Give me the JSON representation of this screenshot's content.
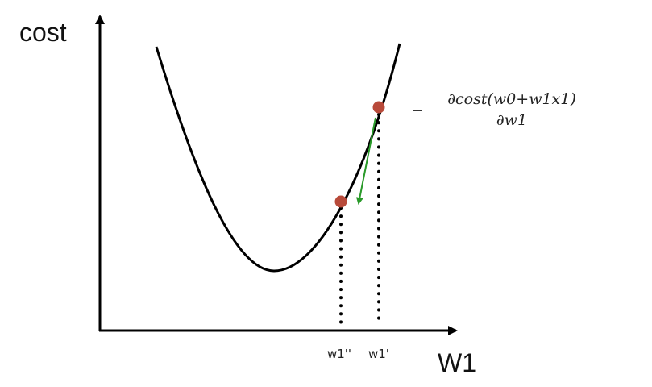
{
  "diagram": {
    "y_axis_label": "cost",
    "x_axis_label": "W1",
    "ticks": {
      "w1_double_prime": "w1''",
      "w1_prime": "w1'"
    },
    "gradient_label": {
      "sign": "−",
      "numerator": "∂cost(w0+w1x1)",
      "denominator": "∂w1"
    },
    "colors": {
      "curve": "#000000",
      "axes": "#000000",
      "points": "#b84a3a",
      "gradient_arrow": "#2a9a2a",
      "dotted_lines": "#000000"
    }
  }
}
